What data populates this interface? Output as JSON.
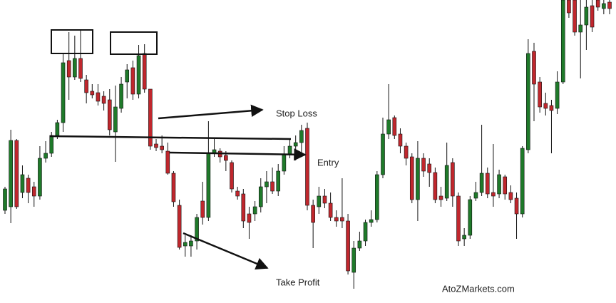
{
  "chart_data": {
    "type": "candlestick",
    "annotations": [
      "Stop Loss",
      "Entry",
      "Take Profit"
    ],
    "watermark": "AtoZMarkets.com",
    "up_color": "#1f7a2a",
    "down_color": "#c0272d",
    "wick_color": "#111111",
    "open": [
      125,
      130,
      223,
      150,
      170,
      158,
      145,
      198,
      205,
      230,
      248,
      335,
      312,
      338,
      308,
      292,
      290,
      285,
      280,
      235,
      268,
      305,
      325,
      288,
      345,
      295,
      218,
      215,
      208,
      177,
      132,
      75,
      75,
      82,
      138,
      115,
      205,
      208,
      202,
      192,
      152,
      148,
      120,
      120,
      130,
      158,
      165,
      152,
      180,
      203,
      215,
      220,
      240,
      132,
      130,
      145,
      135,
      115,
      115,
      110,
      38,
      72,
      82,
      108,
      112,
      175,
      232,
      255,
      232,
      215,
      200,
      140,
      198,
      190,
      178,
      145,
      142,
      192,
      145,
      85,
      90,
      142,
      150,
      177,
      150,
      148,
      172,
      150,
      142,
      120,
      210,
      348,
      305,
      275,
      272,
      268,
      305,
      420,
      420,
      375,
      385,
      412,
      420,
      408,
      417
    ],
    "high": [
      158,
      238,
      225,
      188,
      175,
      165,
      215,
      222,
      235,
      252,
      345,
      375,
      370,
      378,
      315,
      302,
      302,
      292,
      295,
      300,
      312,
      330,
      335,
      357,
      358,
      295,
      225,
      230,
      220,
      180,
      140,
      90,
      90,
      120,
      165,
      250,
      225,
      212,
      208,
      195,
      158,
      155,
      130,
      138,
      170,
      180,
      185,
      190,
      215,
      225,
      230,
      245,
      248,
      140,
      158,
      155,
      150,
      125,
      170,
      120,
      82,
      95,
      112,
      125,
      180,
      255,
      302,
      258,
      240,
      220,
      205,
      222,
      205,
      198,
      185,
      158,
      220,
      198,
      150,
      100,
      145,
      165,
      245,
      185,
      218,
      182,
      175,
      160,
      150,
      215,
      365,
      360,
      312,
      290,
      280,
      320,
      420,
      420,
      420,
      420,
      420,
      420,
      420,
      420,
      420
    ],
    "low": [
      120,
      107,
      127,
      142,
      135,
      130,
      140,
      192,
      200,
      225,
      235,
      280,
      308,
      305,
      275,
      282,
      272,
      265,
      230,
      193,
      262,
      282,
      280,
      282,
      290,
      210,
      208,
      205,
      175,
      130,
      70,
      60,
      60,
      70,
      105,
      110,
      200,
      192,
      180,
      150,
      140,
      100,
      85,
      110,
      122,
      135,
      148,
      145,
      175,
      198,
      195,
      205,
      125,
      72,
      120,
      128,
      110,
      102,
      100,
      35,
      15,
      68,
      75,
      102,
      108,
      170,
      225,
      225,
      205,
      188,
      135,
      110,
      172,
      158,
      135,
      130,
      138,
      130,
      75,
      75,
      85,
      138,
      145,
      142,
      130,
      142,
      140,
      135,
      85,
      115,
      205,
      250,
      262,
      258,
      205,
      260,
      302,
      395,
      370,
      310,
      350,
      375,
      405,
      400,
      400
    ],
    "close": [
      155,
      223,
      130,
      175,
      150,
      145,
      198,
      205,
      230,
      248,
      332,
      312,
      338,
      310,
      290,
      287,
      278,
      275,
      238,
      270,
      302,
      322,
      288,
      342,
      295,
      215,
      213,
      210,
      177,
      137,
      73,
      80,
      82,
      115,
      115,
      205,
      210,
      200,
      195,
      155,
      145,
      110,
      108,
      130,
      158,
      165,
      152,
      180,
      203,
      215,
      220,
      237,
      132,
      108,
      145,
      135,
      115,
      110,
      110,
      40,
      72,
      82,
      108,
      112,
      175,
      232,
      252,
      230,
      215,
      198,
      140,
      198,
      180,
      178,
      140,
      140,
      188,
      145,
      82,
      90,
      140,
      150,
      177,
      148,
      145,
      175,
      148,
      140,
      120,
      212,
      345,
      302,
      270,
      268,
      265,
      305,
      420,
      402,
      375,
      385,
      410,
      382,
      410,
      415,
      408
    ]
  }
}
